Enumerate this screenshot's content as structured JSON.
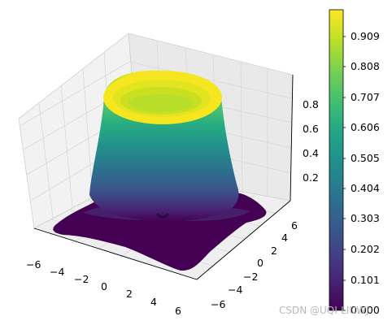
{
  "chart_data": {
    "type": "surface3d",
    "title": "",
    "xlabel": "",
    "ylabel": "",
    "zlabel": "",
    "x_ticks": [
      "−6",
      "−4",
      "−2",
      "0",
      "2",
      "4",
      "6"
    ],
    "y_ticks": [
      "−6",
      "−4",
      "−2",
      "0",
      "2",
      "4",
      "6"
    ],
    "z_ticks": [
      "0.2",
      "0.4",
      "0.6",
      "0.8"
    ],
    "xlim": [
      -6,
      6
    ],
    "ylim": [
      -6,
      6
    ],
    "zlim": [
      0,
      1
    ],
    "colormap": "viridis",
    "colorbar": {
      "ticks": [
        "0.000",
        "0.101",
        "0.202",
        "0.303",
        "0.404",
        "0.505",
        "0.606",
        "0.707",
        "0.808",
        "0.909"
      ],
      "range": [
        0,
        0.99
      ]
    },
    "grid": true
  },
  "watermark": "CSDN @UQI-LIUWJ"
}
